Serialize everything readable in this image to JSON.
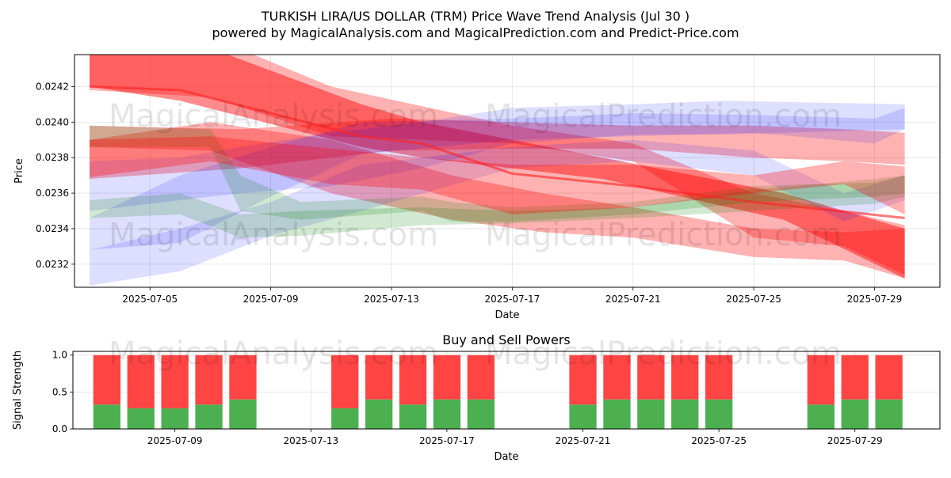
{
  "title": "TURKISH LIRA/US DOLLAR (TRM) Price Wave Trend Analysis (Jul 30 )",
  "subtitle": "powered by MagicalAnalysis.com and MagicalPrediction.com and Predict-Price.com",
  "watermarks": [
    "MagicalAnalysis.com",
    "MagicalPrediction.com"
  ],
  "chart_data": [
    {
      "type": "line",
      "xlabel": "Date",
      "ylabel": "Price",
      "xlim": [
        "2025-07-02T12:00",
        "2025-07-31T04:00"
      ],
      "ylim": [
        0.02307,
        0.02438
      ],
      "xticks": [
        "2025-07-05",
        "2025-07-09",
        "2025-07-13",
        "2025-07-17",
        "2025-07-21",
        "2025-07-25",
        "2025-07-29"
      ],
      "yticks": [
        0.0232,
        0.0234,
        0.0236,
        0.0238,
        0.024,
        0.0242
      ],
      "grid": true,
      "bands": [
        {
          "color": "#ff0000",
          "opacity": 0.45,
          "x": [
            "2025-07-03",
            "2025-07-06",
            "2025-07-12",
            "2025-07-14",
            "2025-07-20",
            "2025-07-26",
            "2025-07-30"
          ],
          "lower": [
            0.0242,
            0.02412,
            0.02386,
            0.0238,
            0.02368,
            0.02345,
            0.02312
          ],
          "upper": [
            0.02448,
            0.02448,
            0.0241,
            0.024,
            0.0238,
            0.0236,
            0.0234
          ]
        },
        {
          "color": "#ff0000",
          "opacity": 0.3,
          "x": [
            "2025-07-03",
            "2025-07-07",
            "2025-07-11",
            "2025-07-17",
            "2025-07-21",
            "2025-07-25",
            "2025-07-28",
            "2025-07-30"
          ],
          "lower": [
            0.02418,
            0.02414,
            0.02392,
            0.02388,
            0.02378,
            0.02335,
            0.0233,
            0.02314
          ],
          "upper": [
            0.02442,
            0.02448,
            0.0242,
            0.02398,
            0.02388,
            0.0236,
            0.0235,
            0.02342
          ]
        },
        {
          "color": "#ff0000",
          "opacity": 0.3,
          "x": [
            "2025-07-03",
            "2025-07-08",
            "2025-07-13",
            "2025-07-17",
            "2025-07-21",
            "2025-07-25",
            "2025-07-28",
            "2025-07-30"
          ],
          "lower": [
            0.02368,
            0.02374,
            0.02384,
            0.02385,
            0.02385,
            0.0238,
            0.02378,
            0.02376
          ],
          "upper": [
            0.02398,
            0.02396,
            0.02402,
            0.024,
            0.02398,
            0.02398,
            0.02396,
            0.02394
          ]
        },
        {
          "color": "#ff0000",
          "opacity": 0.3,
          "x": [
            "2025-07-03",
            "2025-07-07",
            "2025-07-11",
            "2025-07-15",
            "2025-07-18",
            "2025-07-21",
            "2025-07-25",
            "2025-07-28",
            "2025-07-30"
          ],
          "lower": [
            0.02386,
            0.02384,
            0.0236,
            0.02345,
            0.02338,
            0.02335,
            0.02324,
            0.02322,
            0.02312
          ],
          "upper": [
            0.0239,
            0.024,
            0.0239,
            0.0237,
            0.0236,
            0.02352,
            0.0234,
            0.02338,
            0.0234
          ]
        },
        {
          "color": "#0000ff",
          "opacity": 0.13,
          "x": [
            "2025-07-03",
            "2025-07-06",
            "2025-07-08",
            "2025-07-11",
            "2025-07-14",
            "2025-07-17",
            "2025-07-21",
            "2025-07-24",
            "2025-07-30"
          ],
          "lower": [
            0.0235,
            0.02356,
            0.0236,
            0.02364,
            0.02374,
            0.02388,
            0.02393,
            0.02393,
            0.02396
          ],
          "upper": [
            0.02378,
            0.0238,
            0.02386,
            0.02394,
            0.024,
            0.02408,
            0.0241,
            0.02412,
            0.0241
          ]
        },
        {
          "color": "#0000ff",
          "opacity": 0.13,
          "x": [
            "2025-07-03",
            "2025-07-06",
            "2025-07-09",
            "2025-07-12",
            "2025-07-17",
            "2025-07-21",
            "2025-07-25",
            "2025-07-29",
            "2025-07-30"
          ],
          "lower": [
            0.02328,
            0.02332,
            0.02358,
            0.02382,
            0.0239,
            0.02392,
            0.02394,
            0.02388,
            0.02396
          ],
          "upper": [
            0.02346,
            0.0237,
            0.02386,
            0.024,
            0.02402,
            0.02405,
            0.02404,
            0.02402,
            0.02408
          ]
        },
        {
          "color": "#0000ff",
          "opacity": 0.13,
          "x": [
            "2025-07-03",
            "2025-07-06",
            "2025-07-09",
            "2025-07-12",
            "2025-07-17",
            "2025-07-21",
            "2025-07-25",
            "2025-07-28",
            "2025-07-30"
          ],
          "lower": [
            0.02308,
            0.02316,
            0.02336,
            0.0235,
            0.02374,
            0.02378,
            0.0237,
            0.02344,
            0.02356
          ],
          "upper": [
            0.02328,
            0.0234,
            0.02355,
            0.02376,
            0.02386,
            0.0239,
            0.02384,
            0.0236,
            0.0237
          ]
        },
        {
          "color": "#008000",
          "opacity": 0.18,
          "x": [
            "2025-07-03",
            "2025-07-06",
            "2025-07-08",
            "2025-07-10",
            "2025-07-14",
            "2025-07-17",
            "2025-07-21",
            "2025-07-25",
            "2025-07-29",
            "2025-07-30"
          ],
          "lower": [
            0.02346,
            0.02348,
            0.02335,
            0.02336,
            0.02342,
            0.02343,
            0.02346,
            0.0235,
            0.02354,
            0.02358
          ],
          "upper": [
            0.02356,
            0.0236,
            0.02348,
            0.0235,
            0.02352,
            0.0235,
            0.02352,
            0.02362,
            0.02368,
            0.0237
          ]
        },
        {
          "color": "#008000",
          "opacity": 0.18,
          "x": [
            "2025-07-03",
            "2025-07-07",
            "2025-07-08",
            "2025-07-10",
            "2025-07-14",
            "2025-07-15",
            "2025-07-17",
            "2025-07-21",
            "2025-07-25",
            "2025-07-29",
            "2025-07-30"
          ],
          "lower": [
            0.02386,
            0.02386,
            0.0235,
            0.02345,
            0.0235,
            0.02344,
            0.02344,
            0.02348,
            0.02355,
            0.02358,
            0.0236
          ],
          "upper": [
            0.02398,
            0.02396,
            0.0237,
            0.02355,
            0.02358,
            0.02355,
            0.02352,
            0.02355,
            0.02364,
            0.02366,
            0.0237
          ]
        },
        {
          "color": "#ff0000",
          "opacity": 0.3,
          "x": [
            "2025-07-03",
            "2025-07-07",
            "2025-07-11",
            "2025-07-14",
            "2025-07-17",
            "2025-07-21",
            "2025-07-25",
            "2025-07-28",
            "2025-07-30"
          ],
          "lower": [
            0.02369,
            0.02378,
            0.02365,
            0.02362,
            0.02348,
            0.02352,
            0.0236,
            0.02365,
            0.02348
          ],
          "upper": [
            0.0239,
            0.02392,
            0.02385,
            0.0238,
            0.02376,
            0.02376,
            0.0237,
            0.02378,
            0.02375
          ]
        }
      ],
      "series": [
        {
          "color": "#ff2222",
          "opacity": 0.6,
          "x": [
            "2025-07-03",
            "2025-07-06",
            "2025-07-12",
            "2025-07-14",
            "2025-07-17",
            "2025-07-21",
            "2025-07-25",
            "2025-07-30"
          ],
          "values": [
            0.0242,
            0.02418,
            0.02392,
            0.02388,
            0.02371,
            0.02364,
            0.02355,
            0.02346
          ]
        }
      ]
    },
    {
      "type": "bar",
      "title": "Buy and Sell Powers",
      "xlabel": "Date",
      "ylabel": "Signal Strength",
      "xlim": [
        "2025-07-06T00:00",
        "2025-07-31T12:00"
      ],
      "ylim": [
        0,
        1.05
      ],
      "xticks": [
        "2025-07-09",
        "2025-07-13",
        "2025-07-17",
        "2025-07-21",
        "2025-07-25",
        "2025-07-29"
      ],
      "yticks": [
        0.0,
        0.5,
        1.0
      ],
      "yticklabels": [
        "0.0",
        "0.5",
        "1.0"
      ],
      "grid": true,
      "categories": [
        "2025-07-07",
        "2025-07-08",
        "2025-07-09",
        "2025-07-10",
        "2025-07-11",
        "2025-07-14",
        "2025-07-15",
        "2025-07-16",
        "2025-07-17",
        "2025-07-18",
        "2025-07-21",
        "2025-07-22",
        "2025-07-23",
        "2025-07-24",
        "2025-07-25",
        "2025-07-28",
        "2025-07-29",
        "2025-07-30"
      ],
      "series": [
        {
          "name": "Buy",
          "color": "#4caf50",
          "values": [
            0.33,
            0.28,
            0.28,
            0.33,
            0.4,
            0.28,
            0.4,
            0.33,
            0.4,
            0.4,
            0.33,
            0.4,
            0.4,
            0.4,
            0.4,
            0.33,
            0.4,
            0.4
          ]
        },
        {
          "name": "Sell",
          "color": "#ff4444",
          "values": [
            0.67,
            0.72,
            0.72,
            0.67,
            0.6,
            0.72,
            0.6,
            0.67,
            0.6,
            0.6,
            0.67,
            0.6,
            0.6,
            0.6,
            0.6,
            0.67,
            0.6,
            0.6
          ]
        }
      ]
    }
  ]
}
